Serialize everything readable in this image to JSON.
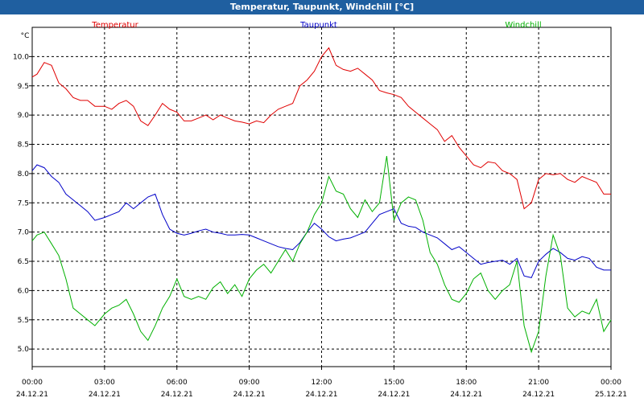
{
  "window": {
    "title": "Temperatur, Taupunkt, Windchill [°C]"
  },
  "colors": {
    "title_bg": "#1f5fa0",
    "temperature": "#e00000",
    "dewpoint": "#0000c8",
    "windchill": "#00b000",
    "grid": "#000000"
  },
  "chart_data": {
    "type": "line",
    "title": "Temperatur, Taupunkt, Windchill [°C]",
    "ylabel": "°C",
    "ylim": [
      4.7,
      10.5
    ],
    "y_ticks": [
      "10.0",
      "9.5",
      "9.0",
      "8.5",
      "8.0",
      "7.5",
      "7.0",
      "6.5",
      "6.0",
      "5.5",
      "5.0"
    ],
    "xlim_hours": [
      0,
      24
    ],
    "x_ticks": [
      {
        "time": "00:00",
        "date": "24.12.21"
      },
      {
        "time": "03:00",
        "date": "24.12.21"
      },
      {
        "time": "06:00",
        "date": "24.12.21"
      },
      {
        "time": "09:00",
        "date": "24.12.21"
      },
      {
        "time": "12:00",
        "date": "24.12.21"
      },
      {
        "time": "15:00",
        "date": "24.12.21"
      },
      {
        "time": "18:00",
        "date": "24.12.21"
      },
      {
        "time": "21:00",
        "date": "24.12.21"
      },
      {
        "time": "00:00",
        "date": "25.12.21"
      }
    ],
    "x_hours": [
      0.0,
      0.2,
      0.5,
      0.8,
      1.1,
      1.4,
      1.7,
      2.0,
      2.3,
      2.6,
      3.0,
      3.3,
      3.6,
      3.9,
      4.2,
      4.5,
      4.8,
      5.1,
      5.4,
      5.7,
      6.0,
      6.3,
      6.6,
      6.9,
      7.2,
      7.5,
      7.8,
      8.1,
      8.4,
      8.7,
      9.0,
      9.3,
      9.6,
      9.9,
      10.2,
      10.5,
      10.8,
      11.1,
      11.4,
      11.7,
      12.0,
      12.3,
      12.6,
      12.9,
      13.2,
      13.5,
      13.8,
      14.1,
      14.4,
      14.7,
      15.0,
      15.3,
      15.6,
      15.9,
      16.2,
      16.5,
      16.8,
      17.1,
      17.4,
      17.7,
      18.0,
      18.3,
      18.6,
      18.9,
      19.2,
      19.5,
      19.8,
      20.1,
      20.4,
      20.7,
      21.0,
      21.3,
      21.6,
      21.9,
      22.2,
      22.5,
      22.8,
      23.1,
      23.4,
      23.7,
      24.0
    ],
    "series": [
      {
        "name": "Temperatur",
        "color": "#e00000",
        "values": [
          9.65,
          9.7,
          9.9,
          9.85,
          9.55,
          9.45,
          9.3,
          9.25,
          9.25,
          9.15,
          9.15,
          9.1,
          9.2,
          9.25,
          9.15,
          8.9,
          8.82,
          9.0,
          9.2,
          9.1,
          9.05,
          8.9,
          8.9,
          8.95,
          9.0,
          8.92,
          9.0,
          8.95,
          8.9,
          8.88,
          8.85,
          8.9,
          8.87,
          9.0,
          9.1,
          9.15,
          9.2,
          9.5,
          9.6,
          9.75,
          10.0,
          10.15,
          9.85,
          9.78,
          9.75,
          9.8,
          9.7,
          9.6,
          9.42,
          9.38,
          9.35,
          9.3,
          9.15,
          9.05,
          8.95,
          8.85,
          8.75,
          8.55,
          8.65,
          8.45,
          8.3,
          8.15,
          8.1,
          8.2,
          8.18,
          8.05,
          8.0,
          7.9,
          7.4,
          7.5,
          7.9,
          8.0,
          7.98,
          8.0,
          7.9,
          7.85,
          7.95,
          7.9,
          7.85,
          7.65,
          7.65
        ]
      },
      {
        "name": "Taupunkt",
        "color": "#0000c8",
        "values": [
          8.05,
          8.15,
          8.1,
          7.95,
          7.85,
          7.65,
          7.55,
          7.45,
          7.35,
          7.2,
          7.25,
          7.3,
          7.35,
          7.5,
          7.4,
          7.5,
          7.6,
          7.65,
          7.3,
          7.05,
          6.98,
          6.95,
          6.98,
          7.02,
          7.05,
          7.0,
          6.98,
          6.95,
          6.95,
          6.96,
          6.95,
          6.9,
          6.85,
          6.8,
          6.75,
          6.72,
          6.7,
          6.82,
          7.0,
          7.15,
          7.05,
          6.92,
          6.85,
          6.88,
          6.9,
          6.95,
          7.0,
          7.15,
          7.3,
          7.35,
          7.4,
          7.15,
          7.1,
          7.08,
          7.0,
          6.95,
          6.9,
          6.8,
          6.7,
          6.75,
          6.65,
          6.55,
          6.45,
          6.48,
          6.5,
          6.52,
          6.45,
          6.55,
          6.25,
          6.22,
          6.5,
          6.62,
          6.72,
          6.65,
          6.55,
          6.52,
          6.58,
          6.55,
          6.4,
          6.35,
          6.35
        ]
      },
      {
        "name": "Windchill",
        "color": "#00b000",
        "values": [
          6.85,
          6.95,
          7.0,
          6.8,
          6.6,
          6.2,
          5.7,
          5.6,
          5.5,
          5.4,
          5.6,
          5.7,
          5.75,
          5.85,
          5.6,
          5.3,
          5.15,
          5.4,
          5.7,
          5.9,
          6.2,
          5.9,
          5.85,
          5.9,
          5.85,
          6.05,
          6.15,
          5.95,
          6.1,
          5.9,
          6.2,
          6.35,
          6.45,
          6.3,
          6.5,
          6.7,
          6.5,
          6.8,
          7.0,
          7.3,
          7.5,
          7.95,
          7.7,
          7.65,
          7.4,
          7.25,
          7.55,
          7.35,
          7.5,
          8.3,
          7.2,
          7.5,
          7.6,
          7.55,
          7.2,
          6.65,
          6.45,
          6.1,
          5.85,
          5.8,
          5.95,
          6.2,
          6.3,
          6.0,
          5.85,
          6.0,
          6.1,
          6.5,
          5.4,
          4.95,
          5.3,
          6.25,
          6.95,
          6.6,
          5.7,
          5.55,
          5.65,
          5.6,
          5.85,
          5.3,
          5.5
        ]
      }
    ]
  }
}
